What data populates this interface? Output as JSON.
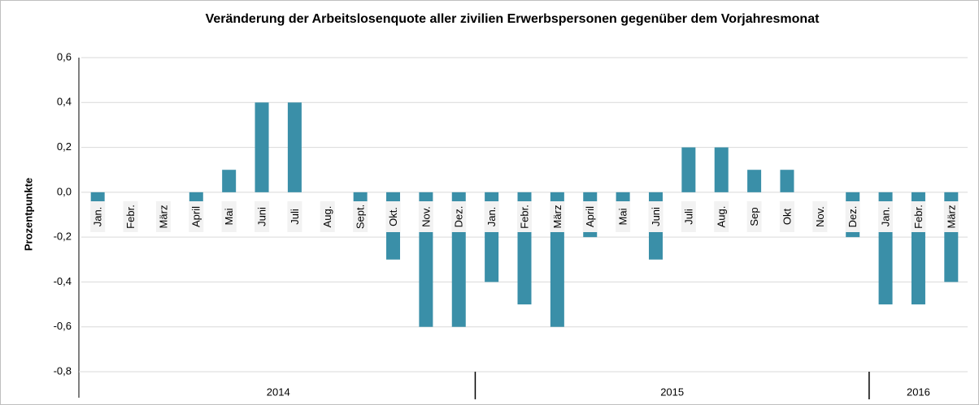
{
  "chart_data": {
    "type": "bar",
    "title": "Veränderung der Arbeitslosenquote aller zivilien Erwerbspersonen gegenüber dem Vorjahresmonat",
    "y_label": "Prozentpunkte",
    "color": "#3a8fa8",
    "grid": true,
    "ylim": [
      -0.8,
      0.6
    ],
    "yticks": [
      {
        "value": -0.8,
        "label": "-0,8"
      },
      {
        "value": -0.6,
        "label": "-0,6"
      },
      {
        "value": -0.4,
        "label": "-0,4"
      },
      {
        "value": -0.2,
        "label": "-0,2"
      },
      {
        "value": 0,
        "label": "0,0"
      },
      {
        "value": 0.2,
        "label": "0,2"
      },
      {
        "value": 0.4,
        "label": "0,4"
      },
      {
        "value": 0.6,
        "label": "0,6"
      }
    ],
    "groups": [
      {
        "label": "2014",
        "categories": [
          "Jan.",
          "Febr.",
          "März",
          "April",
          "Mai",
          "Juni",
          "Juli",
          "Aug.",
          "Sept.",
          "Okt.",
          "Nov.",
          "Dez."
        ],
        "values": [
          -0.1,
          0,
          0,
          -0.1,
          0.1,
          0.4,
          0.4,
          0,
          -0.1,
          -0.3,
          -0.6,
          -0.6
        ]
      },
      {
        "label": "2015",
        "categories": [
          "Jan.",
          "Febr.",
          "März",
          "April",
          "Mai",
          "Juni",
          "Juli",
          "Aug.",
          "Sep",
          "Okt",
          "Nov.",
          "Dez."
        ],
        "values": [
          -0.4,
          -0.5,
          -0.6,
          -0.2,
          -0.1,
          -0.3,
          0.2,
          0.2,
          0.1,
          0.1,
          0,
          -0.2
        ]
      },
      {
        "label": "2016",
        "categories": [
          "Jan.",
          "Febr.",
          "März"
        ],
        "values": [
          -0.5,
          -0.5,
          -0.4
        ]
      }
    ]
  }
}
